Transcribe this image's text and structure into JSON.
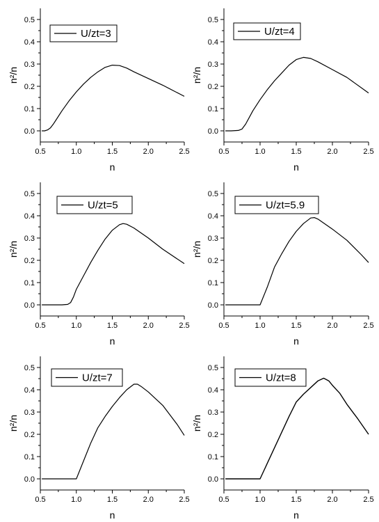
{
  "chart_data": [
    {
      "type": "line",
      "xlabel": "n",
      "ylabel": "n²/n",
      "xlim": [
        0.5,
        2.5
      ],
      "ylim": [
        -0.05,
        0.55
      ],
      "xticks": [
        "0.5",
        "1.0",
        "1.5",
        "2.0",
        "2.5"
      ],
      "yticks": [
        "0.0",
        "0.1",
        "0.2",
        "0.3",
        "0.4",
        "0.5"
      ],
      "legend": "top-left",
      "series": [
        {
          "name": "U/zt=3",
          "x": [
            0.52,
            0.56,
            0.6,
            0.64,
            0.68,
            0.72,
            0.8,
            0.9,
            1.0,
            1.1,
            1.2,
            1.3,
            1.4,
            1.5,
            1.6,
            1.7,
            1.8,
            2.0,
            2.2,
            2.5
          ],
          "y": [
            0.0,
            0.0,
            0.004,
            0.013,
            0.03,
            0.05,
            0.09,
            0.135,
            0.175,
            0.21,
            0.24,
            0.265,
            0.285,
            0.295,
            0.293,
            0.282,
            0.265,
            0.235,
            0.205,
            0.155
          ]
        }
      ]
    },
    {
      "type": "line",
      "xlabel": "n",
      "ylabel": "n²/n",
      "xlim": [
        0.5,
        2.5
      ],
      "ylim": [
        -0.05,
        0.55
      ],
      "xticks": [
        "0.5",
        "1.0",
        "1.5",
        "2.0",
        "2.5"
      ],
      "yticks": [
        "0.0",
        "0.1",
        "0.2",
        "0.3",
        "0.4",
        "0.5"
      ],
      "legend": "top-left",
      "series": [
        {
          "name": "U/zt=4",
          "x": [
            0.52,
            0.6,
            0.7,
            0.75,
            0.8,
            0.85,
            0.9,
            1.0,
            1.1,
            1.2,
            1.3,
            1.4,
            1.5,
            1.6,
            1.7,
            1.8,
            2.0,
            2.2,
            2.5
          ],
          "y": [
            0.0,
            0.0,
            0.002,
            0.008,
            0.03,
            0.06,
            0.09,
            0.14,
            0.185,
            0.225,
            0.26,
            0.295,
            0.32,
            0.33,
            0.325,
            0.31,
            0.275,
            0.24,
            0.17
          ]
        }
      ]
    },
    {
      "type": "line",
      "xlabel": "n",
      "ylabel": "n²/n",
      "xlim": [
        0.5,
        2.5
      ],
      "ylim": [
        -0.05,
        0.55
      ],
      "xticks": [
        "0.5",
        "1.0",
        "1.5",
        "2.0",
        "2.5"
      ],
      "yticks": [
        "0.0",
        "0.1",
        "0.2",
        "0.3",
        "0.4",
        "0.5"
      ],
      "legend": "top-left",
      "series": [
        {
          "name": "U/zt=5",
          "x": [
            0.52,
            0.7,
            0.8,
            0.88,
            0.92,
            0.96,
            1.0,
            1.1,
            1.2,
            1.3,
            1.4,
            1.5,
            1.6,
            1.65,
            1.7,
            1.8,
            2.0,
            2.2,
            2.5
          ],
          "y": [
            0.0,
            0.0,
            0.0,
            0.002,
            0.01,
            0.035,
            0.07,
            0.13,
            0.19,
            0.245,
            0.295,
            0.335,
            0.36,
            0.365,
            0.362,
            0.345,
            0.3,
            0.25,
            0.185
          ]
        }
      ]
    },
    {
      "type": "line",
      "xlabel": "n",
      "ylabel": "n²/n",
      "xlim": [
        0.5,
        2.5
      ],
      "ylim": [
        -0.05,
        0.55
      ],
      "xticks": [
        "0.5",
        "1.0",
        "1.5",
        "2.0",
        "2.5"
      ],
      "yticks": [
        "0.0",
        "0.1",
        "0.2",
        "0.3",
        "0.4",
        "0.5"
      ],
      "legend": "top-left",
      "series": [
        {
          "name": "U/zt=5.9",
          "x": [
            0.52,
            0.8,
            0.98,
            1.0,
            1.1,
            1.2,
            1.3,
            1.4,
            1.5,
            1.6,
            1.7,
            1.75,
            1.8,
            2.0,
            2.2,
            2.4,
            2.5
          ],
          "y": [
            0.0,
            0.0,
            0.0,
            0.0,
            0.08,
            0.17,
            0.23,
            0.285,
            0.33,
            0.365,
            0.39,
            0.392,
            0.385,
            0.34,
            0.29,
            0.225,
            0.19
          ]
        }
      ]
    },
    {
      "type": "line",
      "xlabel": "n",
      "ylabel": "n²/n",
      "xlim": [
        0.5,
        2.5
      ],
      "ylim": [
        -0.05,
        0.55
      ],
      "xticks": [
        "0.5",
        "1.0",
        "1.5",
        "2.0",
        "2.5"
      ],
      "yticks": [
        "0.0",
        "0.1",
        "0.2",
        "0.3",
        "0.4",
        "0.5"
      ],
      "legend": "top-left",
      "series": [
        {
          "name": "U/zt=7",
          "x": [
            0.52,
            0.8,
            0.99,
            1.0,
            1.1,
            1.2,
            1.3,
            1.4,
            1.5,
            1.6,
            1.7,
            1.8,
            1.85,
            1.9,
            2.0,
            2.2,
            2.4,
            2.5
          ],
          "y": [
            0.0,
            0.0,
            0.0,
            0.0,
            0.08,
            0.16,
            0.23,
            0.28,
            0.325,
            0.365,
            0.4,
            0.425,
            0.425,
            0.415,
            0.39,
            0.33,
            0.245,
            0.195
          ]
        }
      ]
    },
    {
      "type": "line",
      "xlabel": "n",
      "ylabel": "n²/n",
      "xlim": [
        0.5,
        2.5
      ],
      "ylim": [
        -0.05,
        0.55
      ],
      "xticks": [
        "0.5",
        "1.0",
        "1.5",
        "2.0",
        "2.5"
      ],
      "yticks": [
        "0.0",
        "0.1",
        "0.2",
        "0.3",
        "0.4",
        "0.5"
      ],
      "legend": "top-left",
      "series": [
        {
          "name": "U/zt=8",
          "x": [
            0.52,
            0.8,
            0.99,
            1.0,
            1.1,
            1.2,
            1.3,
            1.4,
            1.5,
            1.6,
            1.7,
            1.8,
            1.88,
            1.95,
            2.0,
            2.1,
            2.2,
            2.35,
            2.5
          ],
          "y": [
            0.0,
            0.0,
            0.0,
            0.0,
            0.07,
            0.14,
            0.21,
            0.28,
            0.345,
            0.38,
            0.41,
            0.44,
            0.452,
            0.44,
            0.42,
            0.385,
            0.335,
            0.27,
            0.2
          ]
        }
      ]
    }
  ]
}
